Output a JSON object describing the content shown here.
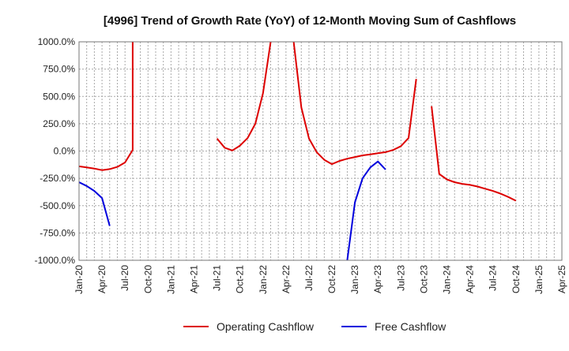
{
  "chart_data": {
    "type": "line",
    "title": "[4996]  Trend of Growth Rate (YoY) of 12-Month Moving Sum of Cashflows",
    "xlabel": "",
    "ylabel": "",
    "ylim": [
      -1000,
      1000
    ],
    "y_ticks": [
      1000,
      750,
      500,
      250,
      0,
      -250,
      -500,
      -750,
      -1000
    ],
    "y_tick_labels": [
      "1000.0%",
      "750.0%",
      "500.0%",
      "250.0%",
      "0.0%",
      "-250.0%",
      "-500.0%",
      "-750.0%",
      "-1000.0%"
    ],
    "x_tick_labels": [
      "Jan-20",
      "Apr-20",
      "Jul-20",
      "Oct-20",
      "Jan-21",
      "Apr-21",
      "Jul-21",
      "Oct-21",
      "Jan-22",
      "Apr-22",
      "Jul-22",
      "Oct-22",
      "Jan-23",
      "Apr-23",
      "Jul-23",
      "Oct-23",
      "Jan-24",
      "Apr-24",
      "Jul-24",
      "Oct-24",
      "Jan-25",
      "Apr-25"
    ],
    "x_range": [
      "2020-01",
      "2025-04"
    ],
    "grid": true,
    "legend_position": "bottom-center",
    "series": [
      {
        "name": "Operating Cashflow",
        "color": "#dd0000",
        "points": [
          [
            "2020-01",
            -140
          ],
          [
            "2020-02",
            -150
          ],
          [
            "2020-03",
            -160
          ],
          [
            "2020-04",
            -175
          ],
          [
            "2020-05",
            -165
          ],
          [
            "2020-06",
            -145
          ],
          [
            "2020-07",
            -105
          ],
          [
            "2020-08",
            10
          ],
          [
            "2020-08",
            1000
          ],
          null,
          [
            "2021-07",
            115
          ],
          [
            "2021-08",
            30
          ],
          [
            "2021-09",
            5
          ],
          [
            "2021-10",
            50
          ],
          [
            "2021-11",
            120
          ],
          [
            "2021-12",
            250
          ],
          [
            "2022-01",
            530
          ],
          [
            "2022-02",
            1000
          ],
          null,
          [
            "2022-05",
            1000
          ],
          [
            "2022-06",
            400
          ],
          [
            "2022-07",
            115
          ],
          [
            "2022-08",
            -10
          ],
          [
            "2022-09",
            -80
          ],
          [
            "2022-10",
            -120
          ],
          [
            "2022-11",
            -90
          ],
          [
            "2022-12",
            -70
          ],
          [
            "2023-01",
            -55
          ],
          [
            "2023-02",
            -40
          ],
          [
            "2023-03",
            -30
          ],
          [
            "2023-04",
            -20
          ],
          [
            "2023-05",
            -10
          ],
          [
            "2023-06",
            10
          ],
          [
            "2023-07",
            45
          ],
          [
            "2023-08",
            120
          ],
          [
            "2023-09",
            660
          ],
          null,
          [
            "2023-11",
            410
          ],
          [
            "2023-12",
            -210
          ],
          [
            "2024-01",
            -260
          ],
          [
            "2024-02",
            -285
          ],
          [
            "2024-03",
            -300
          ],
          [
            "2024-04",
            -310
          ],
          [
            "2024-05",
            -325
          ],
          [
            "2024-06",
            -345
          ],
          [
            "2024-07",
            -365
          ],
          [
            "2024-08",
            -390
          ],
          [
            "2024-09",
            -420
          ],
          [
            "2024-10",
            -455
          ]
        ]
      },
      {
        "name": "Free Cashflow",
        "color": "#0000dd",
        "points": [
          [
            "2020-01",
            -285
          ],
          [
            "2020-02",
            -320
          ],
          [
            "2020-03",
            -365
          ],
          [
            "2020-04",
            -430
          ],
          [
            "2020-05",
            -685
          ],
          null,
          [
            "2022-12",
            -1000
          ],
          [
            "2023-01",
            -470
          ],
          [
            "2023-02",
            -250
          ],
          [
            "2023-03",
            -150
          ],
          [
            "2023-04",
            -95
          ],
          [
            "2023-05",
            -170
          ]
        ]
      }
    ]
  }
}
